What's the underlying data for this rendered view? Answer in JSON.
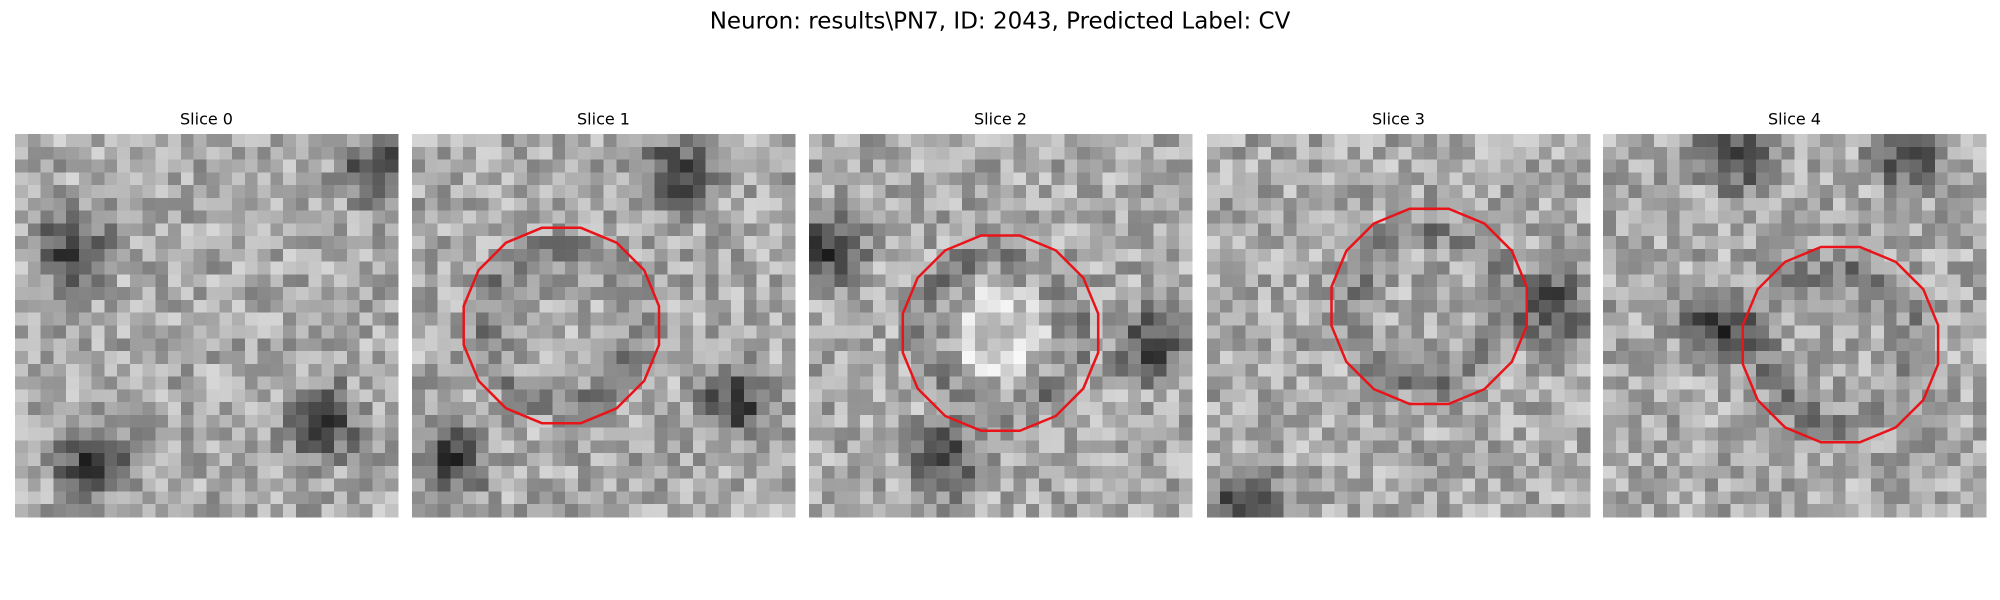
{
  "title": "Neuron: results\\PN7, ID: 2043, Predicted Label: CV",
  "panels": [
    {
      "title": "Slice 0"
    },
    {
      "title": "Slice 1"
    },
    {
      "title": "Slice 2"
    },
    {
      "title": "Slice 3"
    },
    {
      "title": "Slice 4"
    }
  ]
}
